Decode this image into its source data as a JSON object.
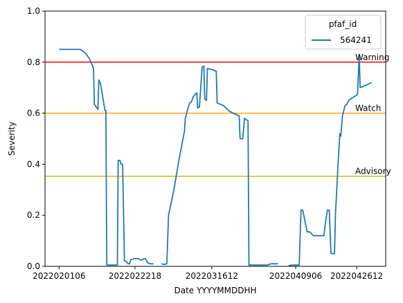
{
  "chart_data": {
    "type": "line",
    "title": "",
    "xlabel": "Date YYYYMMDDHH",
    "ylabel": "Severity",
    "ylim": [
      0,
      1
    ],
    "yticks": [
      "0.0",
      "0.2",
      "0.4",
      "0.6",
      "0.8",
      "1.0"
    ],
    "xticks": [
      "2022020106",
      "2022022218",
      "2022031612",
      "2022040906",
      "2022042612"
    ],
    "legend": {
      "title": "pfaf_id",
      "position": "top-right",
      "entries": [
        "564241"
      ]
    },
    "grid": false,
    "thresholds": [
      {
        "label": "Warning",
        "value": 0.8,
        "color": "#ff0000"
      },
      {
        "label": "Watch",
        "value": 0.6,
        "color": "#ffa500"
      },
      {
        "label": "Advisory",
        "value": 0.353,
        "color": "#cfbf00"
      }
    ],
    "series": [
      {
        "name": "564241",
        "color": "#1f77b4",
        "segments": [
          [
            [
              "2022020106",
              0.85
            ],
            [
              "2022020218",
              0.85
            ],
            [
              "2022020406",
              0.85
            ],
            [
              "2022020518",
              0.85
            ],
            [
              "2022020706",
              0.85
            ],
            [
              "2022020818",
              0.835
            ],
            [
              "2022020918",
              0.815
            ],
            [
              "2022021018",
              0.785
            ],
            [
              "2022021100",
              0.775
            ],
            [
              "2022021106",
              0.635
            ],
            [
              "2022021206",
              0.615
            ],
            [
              "2022021212",
              0.73
            ],
            [
              "2022021300",
              0.715
            ],
            [
              "2022021406",
              0.61
            ],
            [
              "2022021412",
              0.61
            ],
            [
              "2022021418",
              0.005
            ],
            [
              "2022021506",
              0.005
            ],
            [
              "2022021718",
              0.005
            ],
            [
              "2022021800",
              0.415
            ],
            [
              "2022021812",
              0.415
            ],
            [
              "2022021818",
              0.4
            ],
            [
              "2022021906",
              0.4
            ],
            [
              "2022021918",
              0.02
            ],
            [
              "2022022006",
              0.02
            ],
            [
              "2022022018",
              0.01
            ],
            [
              "2022022106",
              0.01
            ],
            [
              "2022022112",
              0.025
            ],
            [
              "2022022212",
              0.03
            ],
            [
              "2022022318",
              0.03
            ],
            [
              "2022022406",
              0.025
            ],
            [
              "2022022418",
              0.025
            ],
            [
              "2022022506",
              0.03
            ],
            [
              "2022022518",
              0.03
            ],
            [
              "2022022606",
              0.015
            ],
            [
              "2022022700",
              0.01
            ],
            [
              "2022022800",
              0.01
            ]
          ],
          [
            [
              "2022030206",
              0.01
            ],
            [
              "2022030218",
              0.008
            ],
            [
              "2022030306",
              0.008
            ],
            [
              "2022030318",
              0.01
            ],
            [
              "2022030406",
              0.2
            ],
            [
              "2022030518",
              0.3
            ],
            [
              "2022030706",
              0.42
            ],
            [
              "2022030818",
              0.53
            ],
            [
              "2022030900",
              0.58
            ],
            [
              "2022030918",
              0.62
            ],
            [
              "2022031006",
              0.64
            ],
            [
              "2022031018",
              0.645
            ],
            [
              "2022031106",
              0.665
            ],
            [
              "2022031206",
              0.68
            ],
            [
              "2022031212",
              0.62
            ],
            [
              "2022031300",
              0.625
            ],
            [
              "2022031318",
              0.78
            ],
            [
              "2022031406",
              0.785
            ],
            [
              "2022031412",
              0.655
            ],
            [
              "2022031500",
              0.65
            ],
            [
              "2022031506",
              0.775
            ],
            [
              "2022031618",
              0.77
            ],
            [
              "2022031712",
              0.765
            ],
            [
              "2022031718",
              0.765
            ],
            [
              "2022031800",
              0.64
            ],
            [
              "2022031918",
              0.63
            ],
            [
              "2022032106",
              0.61
            ],
            [
              "2022032306",
              0.595
            ],
            [
              "2022032406",
              0.59
            ],
            [
              "2022032412",
              0.5
            ],
            [
              "2022032506",
              0.5
            ],
            [
              "2022032518",
              0.58
            ],
            [
              "2022032606",
              0.575
            ],
            [
              "2022032618",
              0.57
            ],
            [
              "2022032700",
              0.005
            ],
            [
              "2022033006",
              0.005
            ],
            [
              "2022033106",
              0.005
            ],
            [
              "2022040106",
              0.005
            ],
            [
              "2022040206",
              0.01
            ],
            [
              "2022040406",
              0.01
            ]
          ],
          [
            [
              "2022040706",
              0.003
            ],
            [
              "2022040806",
              0.005
            ],
            [
              "2022040906",
              0.005
            ],
            [
              "2022041006",
              0.005
            ],
            [
              "2022041018",
              0.22
            ],
            [
              "2022041106",
              0.22
            ],
            [
              "2022041212",
              0.135
            ],
            [
              "2022041306",
              0.135
            ],
            [
              "2022041406",
              0.12
            ],
            [
              "2022041606",
              0.12
            ],
            [
              "2022041706",
              0.12
            ],
            [
              "2022041718",
              0.18
            ],
            [
              "2022041806",
              0.22
            ],
            [
              "2022041818",
              0.22
            ],
            [
              "2022041906",
              0.05
            ],
            [
              "2022041912",
              0.05
            ],
            [
              "2022042006",
              0.05
            ],
            [
              "2022042012",
              0.2
            ],
            [
              "2022042106",
              0.4
            ],
            [
              "2022042118",
              0.52
            ],
            [
              "2022042200",
              0.51
            ],
            [
              "2022042212",
              0.59
            ],
            [
              "2022042306",
              0.63
            ],
            [
              "2022042318",
              0.635
            ],
            [
              "2022042406",
              0.65
            ],
            [
              "2022042506",
              0.66
            ],
            [
              "2022042612",
              0.67
            ],
            [
              "2022042618",
              0.675
            ],
            [
              "2022042706",
              0.825
            ],
            [
              "2022042712",
              0.7
            ],
            [
              "2022042906",
              0.71
            ],
            [
              "2022043018",
              0.72
            ]
          ]
        ]
      }
    ]
  }
}
